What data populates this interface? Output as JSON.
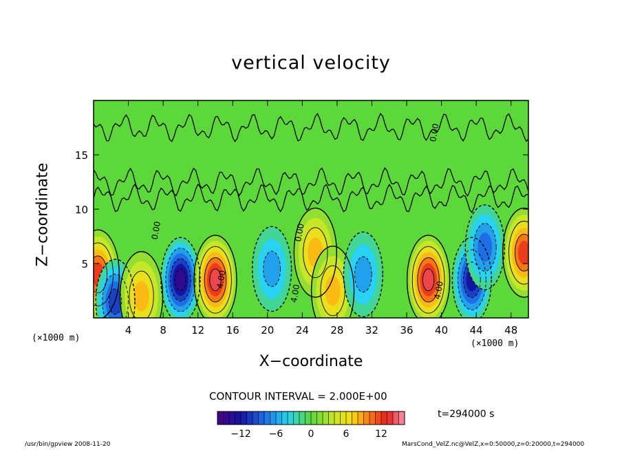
{
  "chart_data": {
    "type": "heatmap",
    "title": "vertical velocity",
    "xlabel": "X−coordinate",
    "ylabel": "Z−coordinate",
    "x_unit": "(×1000 m)",
    "xlim": [
      0,
      50
    ],
    "ylim": [
      0,
      20
    ],
    "x_ticks": [
      4,
      8,
      12,
      16,
      20,
      24,
      28,
      32,
      36,
      40,
      44,
      48
    ],
    "x_tick_labels": [
      "4",
      "8",
      "12",
      "16",
      "20",
      "24",
      "28",
      "32",
      "36",
      "40",
      "44",
      "48"
    ],
    "y_ticks": [
      5,
      10,
      15
    ],
    "y_tick_labels": [
      "5",
      "10",
      "15"
    ],
    "contour_interval_text": "CONTOUR INTERVAL = 2.000E+00",
    "time_text": "t=294000 s",
    "contour_labels": [
      "0.00",
      "0.00",
      "0.00",
      "4.00",
      "4.00",
      "4.00"
    ],
    "colorbar": {
      "range": [
        -16,
        16
      ],
      "ticks": [
        -12,
        -6,
        0,
        6,
        12
      ],
      "tick_labels": [
        "−12",
        "−6",
        "0",
        "6",
        "12"
      ]
    },
    "cells": [
      {
        "x": 0.5,
        "z": 4.0,
        "w": 12
      },
      {
        "x": 2.5,
        "z": 1.5,
        "w": -9
      },
      {
        "x": 5.5,
        "z": 2.0,
        "w": 8
      },
      {
        "x": 10.0,
        "z": 3.5,
        "w": -14
      },
      {
        "x": 14.0,
        "z": 3.5,
        "w": 14
      },
      {
        "x": 20.5,
        "z": 4.5,
        "w": -6
      },
      {
        "x": 25.5,
        "z": 6.0,
        "w": 7
      },
      {
        "x": 27.5,
        "z": 2.5,
        "w": 8
      },
      {
        "x": 31.0,
        "z": 4.0,
        "w": -6
      },
      {
        "x": 38.5,
        "z": 3.5,
        "w": 14
      },
      {
        "x": 43.5,
        "z": 3.5,
        "w": -12
      },
      {
        "x": 45.0,
        "z": 6.5,
        "w": -8
      },
      {
        "x": 49.5,
        "z": 6.0,
        "w": 12
      }
    ]
  },
  "footer": {
    "left": "/usr/bin/gpview   2008-11-20",
    "right": "MarsCond_VelZ.nc@VelZ,x=0:50000,z=0:20000,t=294000"
  }
}
